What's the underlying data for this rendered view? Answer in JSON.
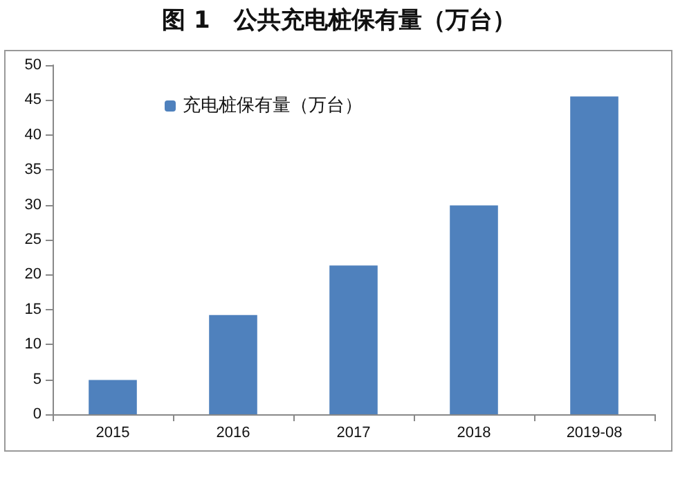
{
  "chart_data": {
    "type": "bar",
    "title": "图 1　公共充电桩保有量（万台）",
    "categories": [
      "2015",
      "2016",
      "2017",
      "2018",
      "2019-08"
    ],
    "series": [
      {
        "name": "充电桩保有量（万台）",
        "color": "#4f81bd",
        "values": [
          4.9,
          14.2,
          21.3,
          29.9,
          45.5
        ]
      }
    ],
    "ylim": [
      0,
      50
    ],
    "yticks": [
      0,
      5,
      10,
      15,
      20,
      25,
      30,
      35,
      40,
      45,
      50
    ],
    "grid": false,
    "legend": "top left"
  }
}
